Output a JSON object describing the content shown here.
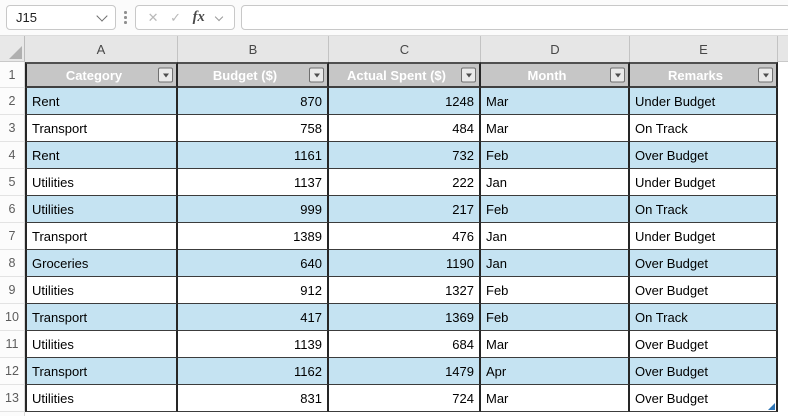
{
  "formula_bar": {
    "name_box_value": "J15",
    "cancel_label": "✕",
    "enter_label": "✓",
    "fx_label": "fx",
    "formula_value": ""
  },
  "sheet": {
    "column_letters": [
      "A",
      "B",
      "C",
      "D",
      "E"
    ],
    "row_numbers": [
      "1",
      "2",
      "3",
      "4",
      "5",
      "6",
      "7",
      "8",
      "9",
      "10",
      "11",
      "12",
      "13"
    ],
    "table": {
      "headers": [
        "Category",
        "Budget ($)",
        "Actual Spent ($)",
        "Month",
        "Remarks"
      ],
      "rows": [
        [
          "Rent",
          "870",
          "1248",
          "Mar",
          "Under Budget"
        ],
        [
          "Transport",
          "758",
          "484",
          "Mar",
          "On Track"
        ],
        [
          "Rent",
          "1161",
          "732",
          "Feb",
          "Over Budget"
        ],
        [
          "Utilities",
          "1137",
          "222",
          "Jan",
          "Under Budget"
        ],
        [
          "Utilities",
          "999",
          "217",
          "Feb",
          "On Track"
        ],
        [
          "Transport",
          "1389",
          "476",
          "Jan",
          "Under Budget"
        ],
        [
          "Groceries",
          "640",
          "1190",
          "Jan",
          "Over Budget"
        ],
        [
          "Utilities",
          "912",
          "1327",
          "Feb",
          "Over Budget"
        ],
        [
          "Transport",
          "417",
          "1369",
          "Feb",
          "On Track"
        ],
        [
          "Utilities",
          "1139",
          "684",
          "Mar",
          "Over Budget"
        ],
        [
          "Transport",
          "1162",
          "1479",
          "Apr",
          "Over Budget"
        ],
        [
          "Utilities",
          "831",
          "724",
          "Mar",
          "Over Budget"
        ]
      ]
    },
    "colors": {
      "band_blue": "#C5E3F2",
      "band_white": "#FFFFFF",
      "header_fill": "#C6C6C6",
      "header_text": "#FFFFFF",
      "table_border": "#262626",
      "resize_handle": "#2E75B6"
    }
  }
}
